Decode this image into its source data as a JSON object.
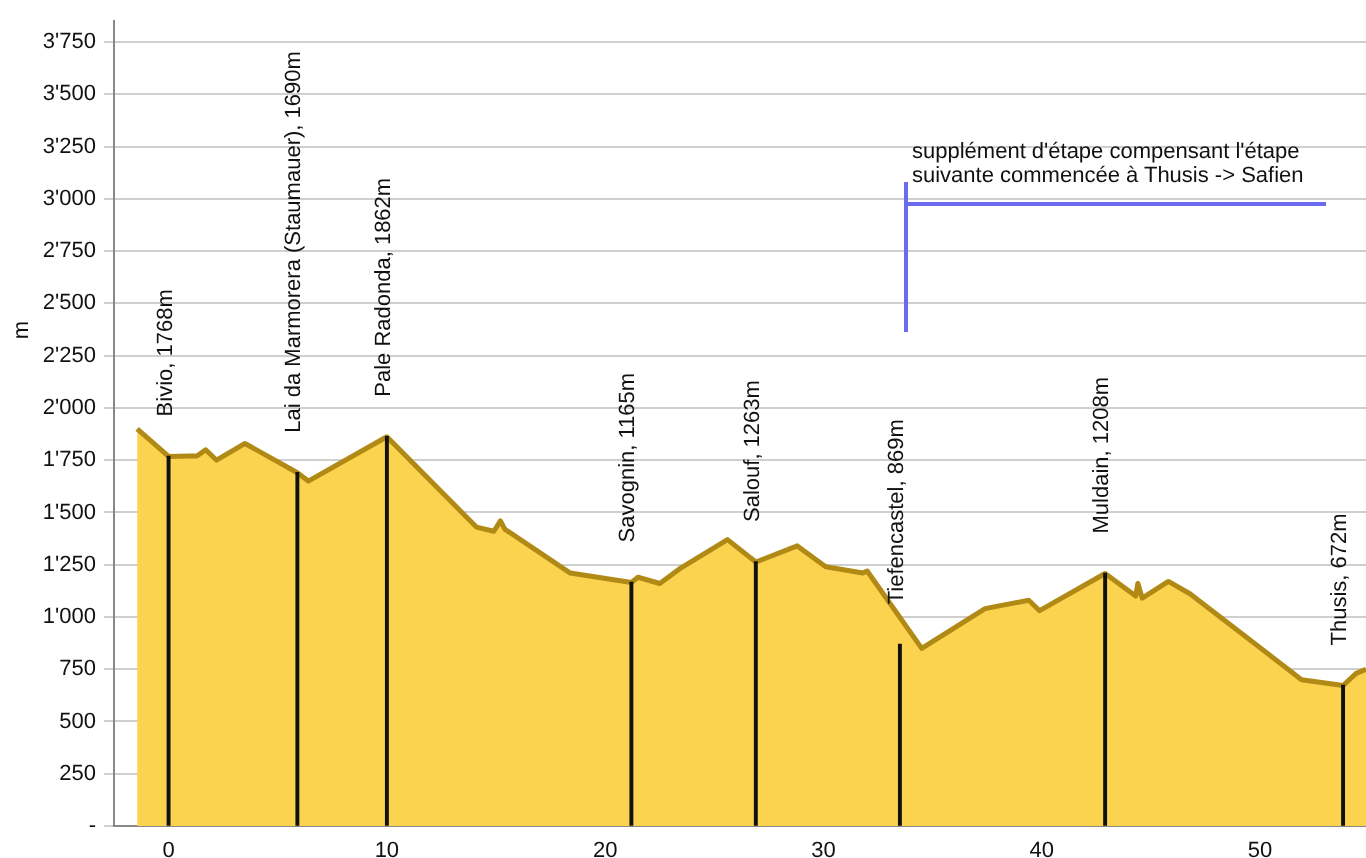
{
  "chart_data": {
    "type": "area",
    "ylabel": "m",
    "grid": "y",
    "legend": false,
    "series": [
      {
        "color": "#fcd34f",
        "x": [
          -1.44,
          0,
          1.0,
          1.3,
          1.7,
          2.2,
          3.5,
          5.9,
          6.4,
          10.0,
          14.1,
          14.9,
          15.2,
          15.4,
          18.4,
          21.2,
          21.5,
          22.5,
          23.4,
          25.6,
          26.9,
          28.8,
          30.1,
          31.8,
          32.0,
          34.5,
          37.4,
          39.4,
          39.9,
          42.9,
          44.3,
          44.4,
          44.6,
          45.8,
          46.8,
          51.9,
          53.8,
          54.4,
          54.85
        ],
        "values": [
          1900,
          1768,
          1770,
          1770,
          1800,
          1750,
          1830,
          1690,
          1650,
          1862,
          1430,
          1410,
          1460,
          1420,
          1210,
          1165,
          1190,
          1160,
          1230,
          1370,
          1263,
          1340,
          1240,
          1210,
          1220,
          850,
          1040,
          1080,
          1030,
          1208,
          1100,
          1160,
          1090,
          1170,
          1110,
          700,
          672,
          730,
          750
        ]
      },
      {
        "type": "bar",
        "color": "#111111",
        "x": [
          0,
          5.9,
          10.0,
          21.2,
          26.9,
          33.5,
          42.9,
          53.8
        ],
        "values": [
          1768,
          1690,
          1862,
          1165,
          1263,
          869,
          1208,
          672
        ]
      }
    ],
    "xlim": [
      -2.5,
      54.85
    ],
    "xticks": [
      0,
      10,
      20,
      30,
      40,
      50
    ],
    "ylim": [
      0,
      3850
    ],
    "yticks": [
      {
        "value": 0,
        "label": "-"
      },
      250,
      500,
      750,
      {
        "value": 1000,
        "label": "1'000"
      },
      {
        "value": 1250,
        "label": "1'250"
      },
      {
        "value": 1500,
        "label": "1'500"
      },
      {
        "value": 1750,
        "label": "1'750"
      },
      {
        "value": 2000,
        "label": "2'000"
      },
      {
        "value": 2250,
        "label": "2'250"
      },
      {
        "value": 2500,
        "label": "2'500"
      },
      {
        "value": 2750,
        "label": "2'750"
      },
      {
        "value": 3000,
        "label": "3'000"
      },
      {
        "value": 3250,
        "label": "3'250"
      },
      {
        "value": 3500,
        "label": "3'500"
      },
      {
        "value": 3750,
        "label": "3'750"
      }
    ],
    "annotations": [
      {
        "text": "Bivio, 1768m",
        "x": 0,
        "y": 1768
      },
      {
        "text": "Lai da Marmorera (Staumauer), 1690m",
        "x": 5.9,
        "y": 1690
      },
      {
        "text": "Pale Radonda, 1862m",
        "x": 10.0,
        "y": 1862
      },
      {
        "text": "Savognin, 1165m",
        "x": 21.2,
        "y": 1165
      },
      {
        "text": "Salouf, 1263m",
        "x": 26.9,
        "y": 1263
      },
      {
        "text": "Tiefencastel, 869m",
        "x": 33.5,
        "y": 869
      },
      {
        "text": "Muldain, 1208m",
        "x": 42.9,
        "y": 1208
      },
      {
        "text": "Thusis, 672m",
        "x": 53.8,
        "y": 672
      },
      "supplément d'étape compensant l'étape suivante commencée à Thusis -> Safien"
    ]
  }
}
